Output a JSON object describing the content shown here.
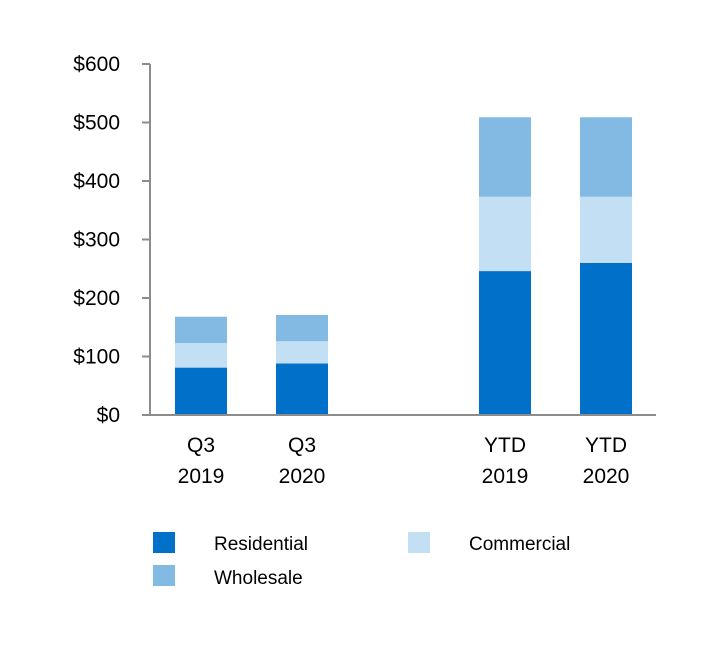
{
  "chart_data": {
    "type": "bar",
    "stacked": true,
    "title": "",
    "xlabel": "",
    "ylabel": "",
    "ylim": [
      0,
      600
    ],
    "yticks": [
      0,
      100,
      200,
      300,
      400,
      500,
      600
    ],
    "ytick_labels": [
      "$0",
      "$100",
      "$200",
      "$300",
      "$400",
      "$500",
      "$600"
    ],
    "grid": false,
    "legend_position": "bottom",
    "categories": [
      {
        "line1": "Q3",
        "line2": "2019"
      },
      {
        "line1": "Q3",
        "line2": "2020"
      },
      {
        "line1": "YTD",
        "line2": "2019"
      },
      {
        "line1": "YTD",
        "line2": "2020"
      }
    ],
    "series": [
      {
        "name": "Residential",
        "color": "#0070C8",
        "values": [
          81,
          88,
          246,
          260
        ]
      },
      {
        "name": "Commercial",
        "color": "#C2DFF3",
        "values": [
          42,
          38,
          127,
          113
        ]
      },
      {
        "name": "Wholesale",
        "color": "#83BAE3",
        "values": [
          45,
          45,
          136,
          136
        ]
      }
    ],
    "legend_order": [
      "Residential",
      "Commercial",
      "Wholesale"
    ]
  }
}
